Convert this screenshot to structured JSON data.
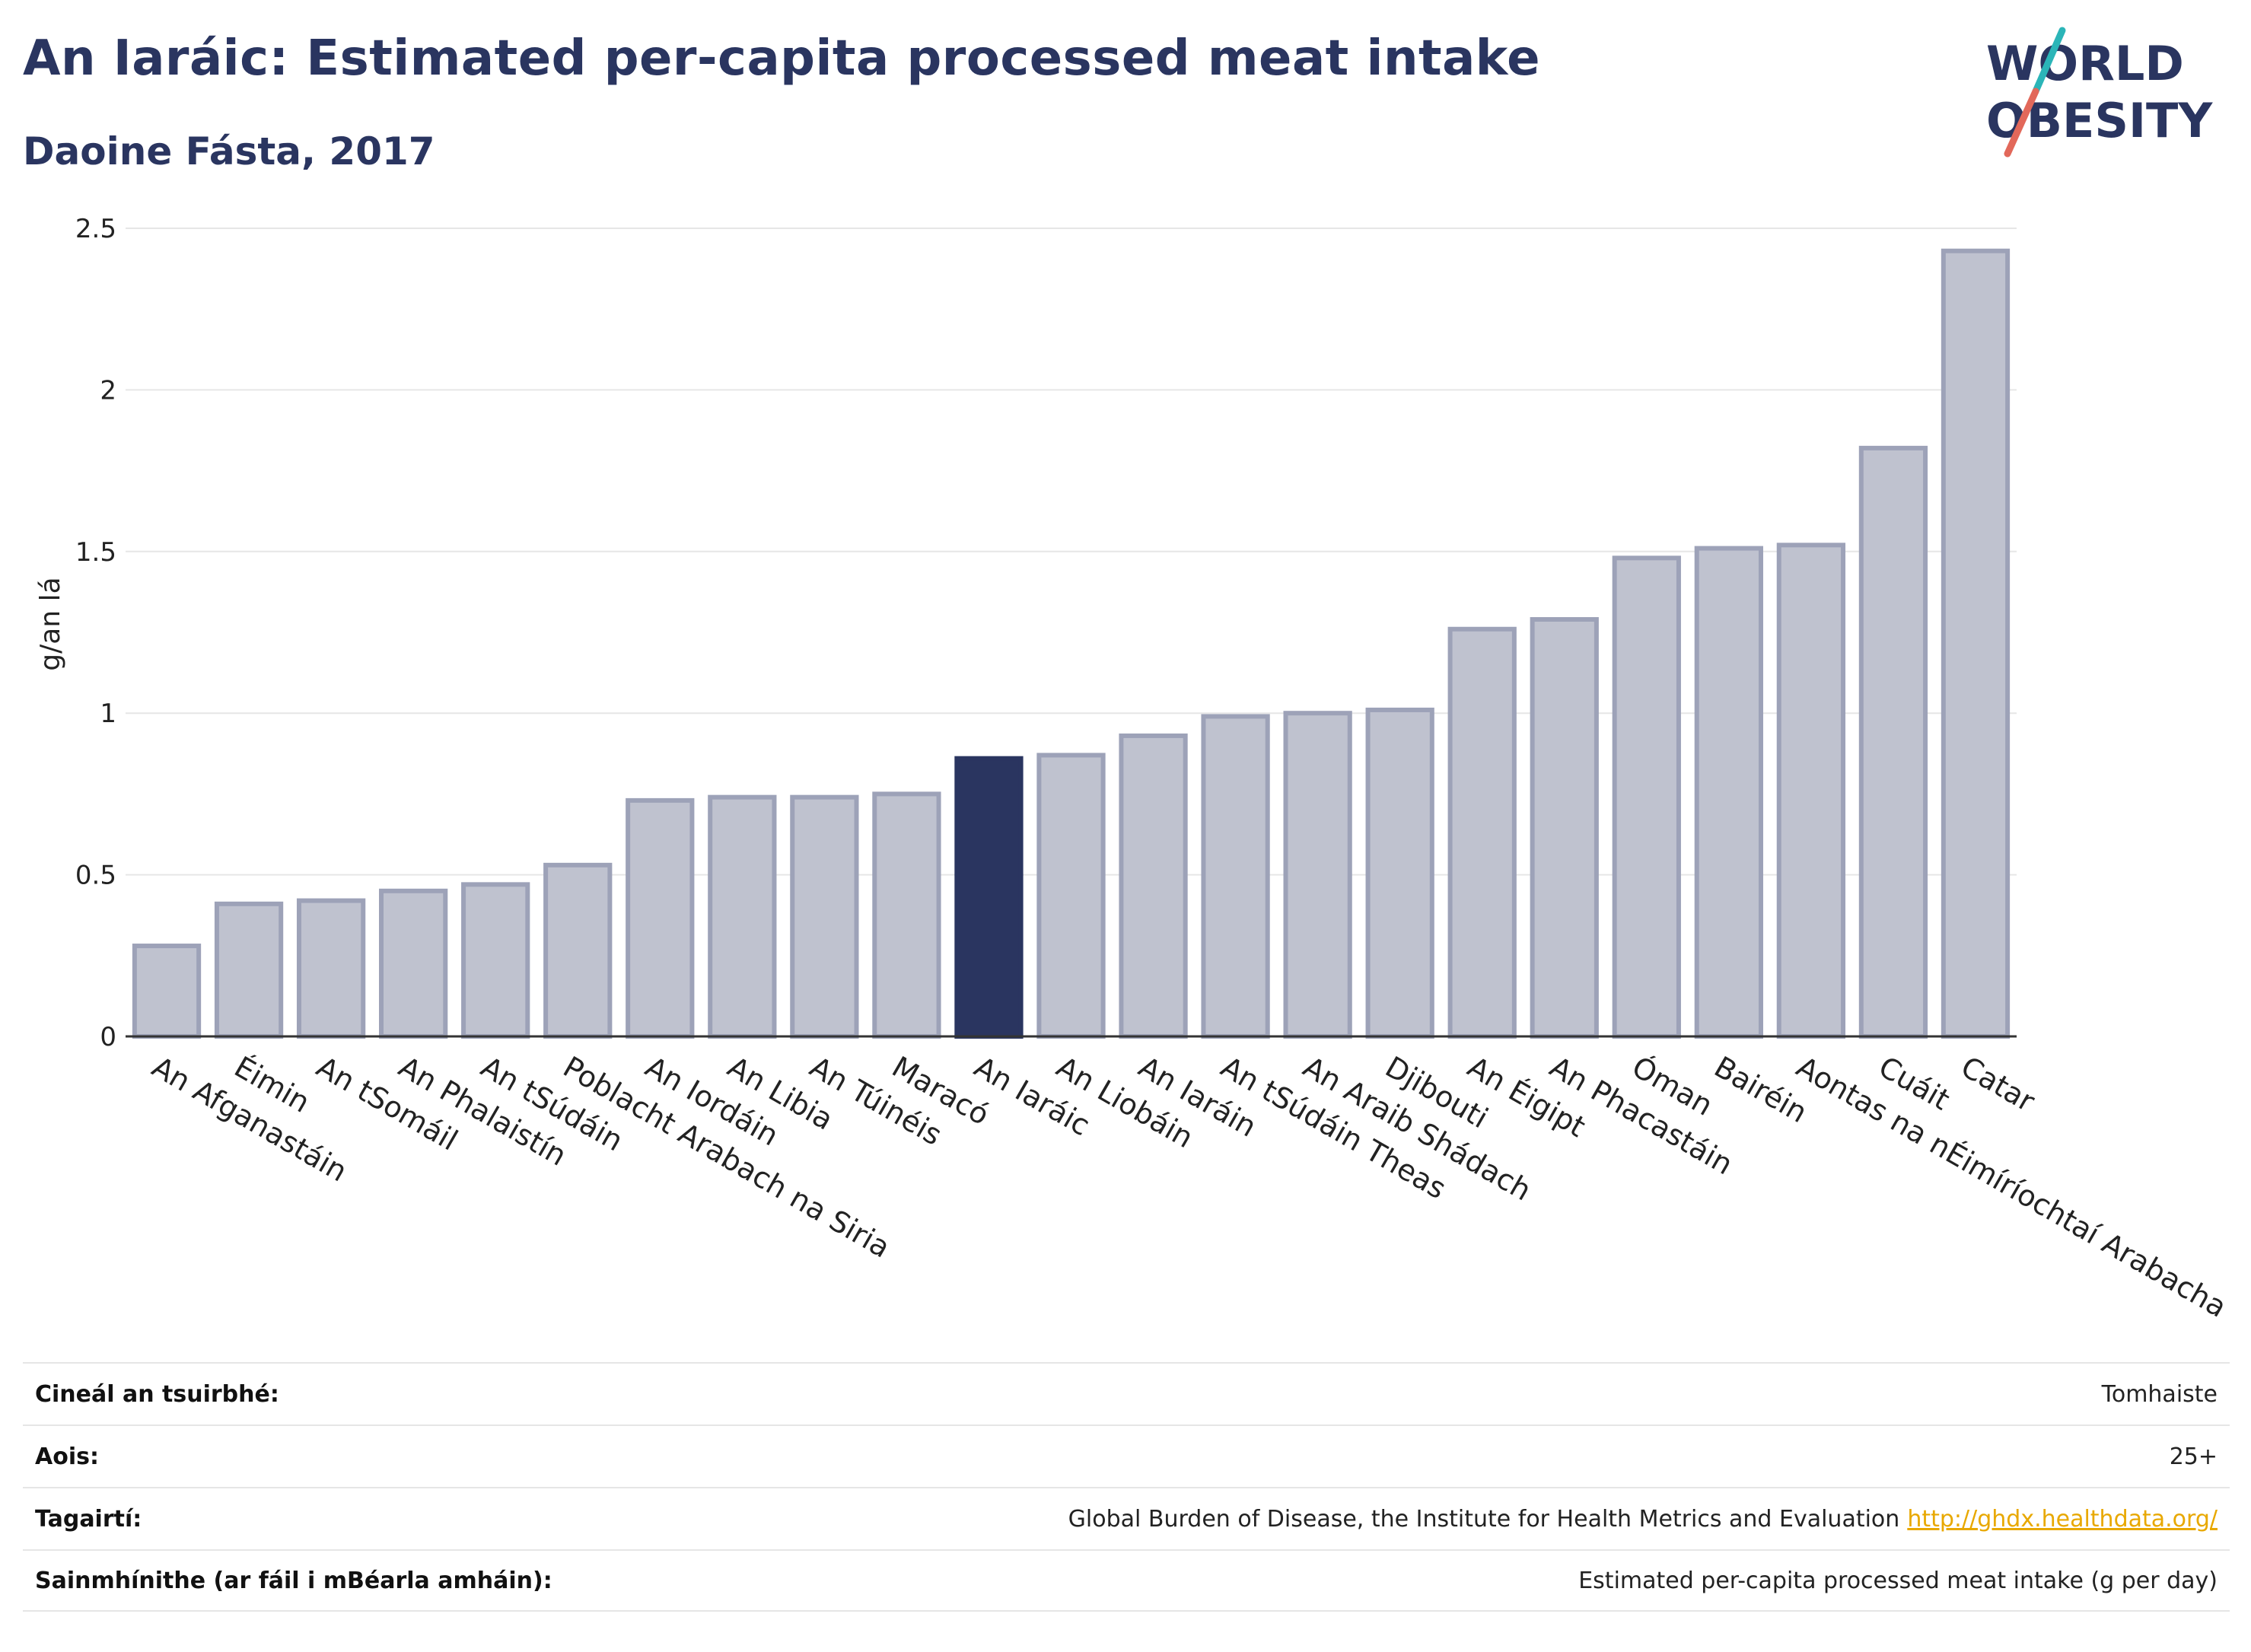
{
  "header": {
    "title": "An Iaráic: Estimated per-capita processed meat intake",
    "subtitle": "Daoine Fásta, 2017"
  },
  "logo": {
    "line1": "WORLD",
    "line2": "OBESITY",
    "colors": {
      "text": "#2a3560",
      "slash_top": "#2bb5b8",
      "slash_bottom": "#e2685a"
    }
  },
  "chart_data": {
    "type": "bar",
    "title": "An Iaráic: Estimated per-capita processed meat intake",
    "ylabel": "g/an lá",
    "xlabel": "",
    "ylim": [
      0,
      2.5
    ],
    "yticks": [
      0,
      0.5,
      1,
      1.5,
      2,
      2.5
    ],
    "ytick_labels": [
      "0",
      "0.5",
      "1",
      "1.5",
      "2",
      "2.5"
    ],
    "grid": true,
    "highlight": "An Iaráic",
    "colors": {
      "bar": "#bfc2cf",
      "bar_edge": "#9da2b8",
      "highlight": "#2a3560",
      "grid": "#e6e6e6"
    },
    "categories": [
      "An Afganastáin",
      "Éimin",
      "An tSomáil",
      "An Phalaistín",
      "An tSúdáin",
      "Poblacht Arabach na Siria",
      "An Iordáin",
      "An Libia",
      "An Túinéis",
      "Maracó",
      "An Iaráic",
      "An Liobáin",
      "An Iaráin",
      "An tSúdáin Theas",
      "An Araib Shádach",
      "Djibouti",
      "An Éigipt",
      "An Phacastáin",
      "Óman",
      "Bairéin",
      "Aontas na nÉimíríochtaí Arabacha",
      "Cuáit",
      "Catar"
    ],
    "values": [
      0.28,
      0.41,
      0.42,
      0.45,
      0.47,
      0.53,
      0.73,
      0.74,
      0.74,
      0.75,
      0.86,
      0.87,
      0.93,
      0.99,
      1.0,
      1.01,
      1.26,
      1.29,
      1.48,
      1.51,
      1.52,
      1.82,
      2.43
    ]
  },
  "info": {
    "rows": [
      {
        "label": "Cineál an tsuirbhé:",
        "value": "Tomhaiste"
      },
      {
        "label": "Aois:",
        "value": "25+"
      },
      {
        "label": "Tagairtí:",
        "value": "Global Burden of Disease, the Institute for Health Metrics and Evaluation",
        "link": "http://ghdx.healthdata.org/"
      },
      {
        "label": "Sainmhínithe (ar fáil i mBéarla amháin):",
        "value": "Estimated per-capita processed meat intake (g per day)"
      }
    ]
  }
}
